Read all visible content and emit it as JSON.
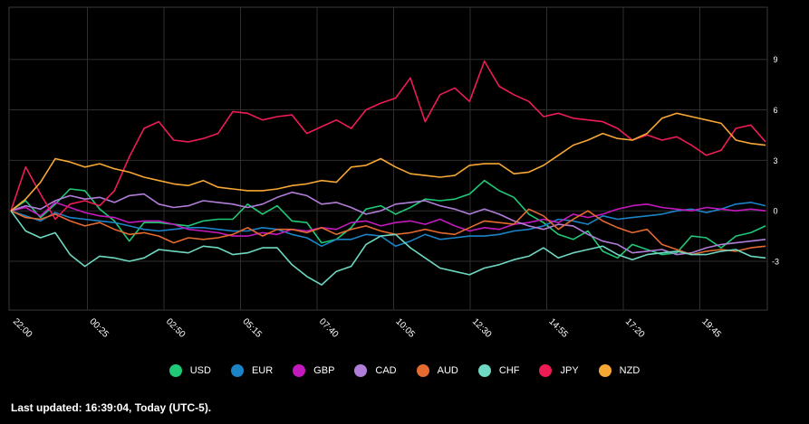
{
  "chart_data": {
    "type": "line",
    "x_ticks": [
      "22:00",
      "00:25",
      "02:50",
      "05:15",
      "07:40",
      "10:05",
      "12:30",
      "14:55",
      "17:20",
      "19:45"
    ],
    "y_ticks": [
      9,
      6,
      3,
      0,
      -3
    ],
    "ylim": [
      -5.9,
      12.1
    ],
    "grid": true,
    "legend_position": "bottom",
    "series": [
      {
        "name": "USD",
        "color": "#1ec977",
        "values": [
          0.0,
          0.6,
          -0.4,
          0.4,
          1.3,
          1.2,
          0.1,
          -0.6,
          -1.8,
          -0.7,
          -0.7,
          -0.8,
          -0.9,
          -0.6,
          -0.5,
          -0.5,
          0.4,
          -0.2,
          0.3,
          -0.6,
          -0.7,
          -1.9,
          -1.7,
          -1.0,
          0.1,
          0.3,
          -0.2,
          0.2,
          0.7,
          0.6,
          0.7,
          1.0,
          1.8,
          1.2,
          0.8,
          -0.2,
          -0.7,
          -1.4,
          -1.7,
          -1.2,
          -2.4,
          -2.8,
          -2.0,
          -2.3,
          -2.6,
          -2.5,
          -1.5,
          -1.6,
          -2.2,
          -1.5,
          -1.3,
          -0.9
        ]
      },
      {
        "name": "EUR",
        "color": "#1b84c7",
        "values": [
          0.0,
          -0.3,
          -0.6,
          -0.1,
          -0.4,
          -0.5,
          -0.6,
          -0.7,
          -0.9,
          -1.1,
          -1.2,
          -1.1,
          -1.0,
          -1.0,
          -1.1,
          -1.2,
          -1.2,
          -1.0,
          -1.1,
          -1.4,
          -1.6,
          -2.1,
          -1.7,
          -1.7,
          -1.4,
          -1.5,
          -2.1,
          -1.8,
          -1.4,
          -1.7,
          -1.6,
          -1.5,
          -1.5,
          -1.4,
          -1.2,
          -1.1,
          -0.9,
          -0.5,
          -0.6,
          -0.8,
          -0.3,
          -0.5,
          -0.4,
          -0.3,
          -0.2,
          0.0,
          0.1,
          -0.1,
          0.1,
          0.4,
          0.5,
          0.3
        ]
      },
      {
        "name": "GBP",
        "color": "#c319bd",
        "values": [
          0.0,
          0.2,
          -0.3,
          0.5,
          0.2,
          -0.1,
          -0.3,
          -0.4,
          -0.7,
          -0.6,
          -0.6,
          -0.8,
          -1.1,
          -1.2,
          -1.3,
          -1.5,
          -1.5,
          -1.3,
          -1.4,
          -1.1,
          -1.2,
          -1.0,
          -1.1,
          -0.7,
          -0.6,
          -0.9,
          -0.7,
          -0.6,
          -0.8,
          -0.5,
          -0.9,
          -1.2,
          -1.0,
          -1.1,
          -0.8,
          -0.7,
          -0.5,
          -0.7,
          -0.2,
          -0.4,
          -0.2,
          0.1,
          0.3,
          0.4,
          0.2,
          0.1,
          0.0,
          0.2,
          0.1,
          0.0,
          0.1,
          0.0
        ]
      },
      {
        "name": "CAD",
        "color": "#b07ed8",
        "values": [
          0.0,
          0.3,
          0.1,
          0.6,
          0.9,
          0.7,
          0.8,
          0.5,
          0.9,
          1.0,
          0.4,
          0.2,
          0.3,
          0.6,
          0.5,
          0.4,
          0.2,
          0.4,
          0.8,
          1.1,
          0.9,
          0.4,
          0.5,
          0.2,
          -0.2,
          0.0,
          0.4,
          0.5,
          0.6,
          0.3,
          0.1,
          -0.2,
          0.1,
          -0.2,
          -0.6,
          -0.9,
          -1.1,
          -0.8,
          -0.9,
          -1.4,
          -1.8,
          -2.0,
          -2.5,
          -2.4,
          -2.3,
          -2.6,
          -2.5,
          -2.2,
          -2.0,
          -1.9,
          -1.8,
          -1.7
        ]
      },
      {
        "name": "AUD",
        "color": "#e46a2f",
        "values": [
          0.0,
          -0.4,
          -0.5,
          -0.2,
          -0.6,
          -0.9,
          -0.7,
          -1.1,
          -1.4,
          -1.3,
          -1.5,
          -1.9,
          -1.6,
          -1.7,
          -1.6,
          -1.4,
          -1.0,
          -1.5,
          -1.1,
          -1.1,
          -1.3,
          -1.0,
          -1.4,
          -1.1,
          -0.9,
          -1.2,
          -1.4,
          -1.3,
          -1.1,
          -1.3,
          -1.4,
          -1.0,
          -0.6,
          -0.7,
          -0.8,
          0.1,
          -0.3,
          -1.1,
          -0.5,
          0.0,
          -0.6,
          -1.0,
          -1.3,
          -1.1,
          -2.0,
          -2.3,
          -2.6,
          -2.4,
          -2.3,
          -2.4,
          -2.2,
          -2.1
        ]
      },
      {
        "name": "CHF",
        "color": "#6fd8c2",
        "values": [
          0.0,
          -1.2,
          -1.6,
          -1.3,
          -2.6,
          -3.3,
          -2.7,
          -2.8,
          -3.0,
          -2.8,
          -2.3,
          -2.4,
          -2.5,
          -2.1,
          -2.2,
          -2.6,
          -2.5,
          -2.2,
          -2.2,
          -3.2,
          -3.9,
          -4.4,
          -3.6,
          -3.3,
          -2.0,
          -1.5,
          -1.4,
          -2.2,
          -2.8,
          -3.4,
          -3.6,
          -3.8,
          -3.4,
          -3.2,
          -2.9,
          -2.7,
          -2.2,
          -2.8,
          -2.5,
          -2.3,
          -2.1,
          -2.6,
          -2.9,
          -2.6,
          -2.5,
          -2.4,
          -2.6,
          -2.6,
          -2.4,
          -2.3,
          -2.7,
          -2.8
        ]
      },
      {
        "name": "JPY",
        "color": "#ee1c55",
        "values": [
          0.0,
          2.6,
          1.0,
          -0.5,
          0.4,
          0.6,
          0.3,
          1.2,
          3.2,
          4.9,
          5.3,
          4.2,
          4.1,
          4.3,
          4.6,
          5.9,
          5.8,
          5.4,
          5.6,
          5.7,
          4.6,
          5.0,
          5.4,
          4.9,
          6.0,
          6.4,
          6.7,
          7.9,
          5.3,
          6.9,
          7.3,
          6.5,
          8.9,
          7.4,
          6.9,
          6.5,
          5.6,
          5.8,
          5.5,
          5.4,
          5.3,
          4.9,
          4.2,
          4.5,
          4.2,
          4.4,
          3.9,
          3.3,
          3.6,
          4.9,
          5.1,
          4.1
        ]
      },
      {
        "name": "NZD",
        "color": "#f7a733",
        "values": [
          0.0,
          0.7,
          1.7,
          3.1,
          2.9,
          2.6,
          2.8,
          2.5,
          2.3,
          2.0,
          1.8,
          1.6,
          1.5,
          1.8,
          1.4,
          1.3,
          1.2,
          1.2,
          1.3,
          1.5,
          1.6,
          1.8,
          1.7,
          2.6,
          2.7,
          3.1,
          2.6,
          2.2,
          2.1,
          2.0,
          2.1,
          2.7,
          2.8,
          2.8,
          2.2,
          2.3,
          2.7,
          3.3,
          3.9,
          4.2,
          4.6,
          4.3,
          4.2,
          4.6,
          5.5,
          5.8,
          5.6,
          5.4,
          5.2,
          4.2,
          4.0,
          3.9
        ]
      }
    ]
  },
  "legend": [
    {
      "label": "USD",
      "color": "#1ec977"
    },
    {
      "label": "EUR",
      "color": "#1b84c7"
    },
    {
      "label": "GBP",
      "color": "#c319bd"
    },
    {
      "label": "CAD",
      "color": "#b07ed8"
    },
    {
      "label": "AUD",
      "color": "#e46a2f"
    },
    {
      "label": "CHF",
      "color": "#6fd8c2"
    },
    {
      "label": "JPY",
      "color": "#ee1c55"
    },
    {
      "label": "NZD",
      "color": "#f7a733"
    }
  ],
  "footer": {
    "text": "Last updated: 16:39:04, Today (UTC-5)."
  }
}
